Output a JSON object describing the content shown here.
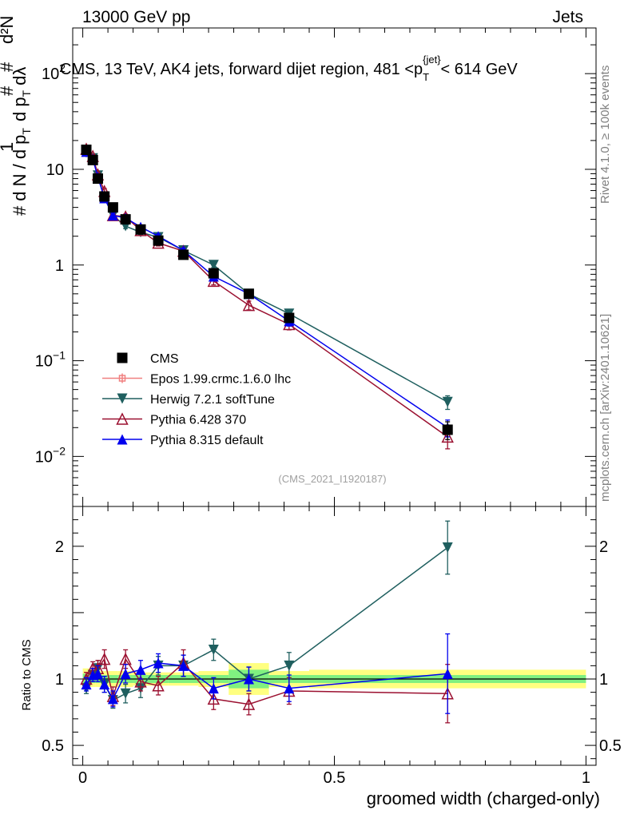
{
  "header": {
    "left": "13000 GeV pp",
    "right": "Jets"
  },
  "plot_title": {
    "main": "CMS, 13 TeV, AK4 jets, forward dijet region, 481 <p",
    "sub": "T",
    "sup": "{jet}",
    "tail": "< 614 GeV"
  },
  "side_labels": {
    "rivet": "Rivet 4.1.0, ≥ 100k events",
    "mcplots": "mcplots.cern.ch [arXiv:2401.10621]"
  },
  "watermark": "(CMS_2021_I1920187)",
  "y_axis_label": {
    "hash1": "#",
    "one": "1",
    "dN": "d N / d p",
    "T1": "T",
    "hash2": "#",
    "d2N": "d²N",
    "dpT": "d p",
    "T2": "T",
    "dlam": "dλ",
    "hash3": "#"
  },
  "ratio_ylabel": "Ratio to CMS",
  "x_axis_label": "groomed width (charged-only)",
  "colors": {
    "cms": "#000000",
    "epos": "#f08080",
    "herwig": "#1f5f5f",
    "pythia6": "#9b1030",
    "pythia8": "#0000ee",
    "band_inner": "#80f080",
    "band_outer": "#ffff80"
  },
  "chart_data": {
    "type": "scatter",
    "x_range": [
      -0.02,
      1.02
    ],
    "main_ylim_log": [
      0.003,
      300
    ],
    "ratio_ylim": [
      0.35,
      2.3
    ],
    "y_ticks_main": [
      {
        "value": 100,
        "base": "10",
        "exp": "2"
      },
      {
        "value": 10,
        "base": "10",
        "exp": ""
      },
      {
        "value": 1,
        "base": "1",
        "exp": ""
      },
      {
        "value": 0.1,
        "base": "10",
        "exp": "−1"
      },
      {
        "value": 0.01,
        "base": "10",
        "exp": "−2"
      }
    ],
    "y_ticks_ratio": [
      {
        "value": 0.5,
        "label": "0.5"
      },
      {
        "value": 1,
        "label": "1"
      },
      {
        "value": 2,
        "label": "2"
      }
    ],
    "x_ticks": [
      {
        "value": 0,
        "label": "0"
      },
      {
        "value": 0.5,
        "label": "0.5"
      },
      {
        "value": 1,
        "label": "1"
      }
    ],
    "bins": [
      {
        "lo": 0.0,
        "hi": 0.015
      },
      {
        "lo": 0.015,
        "hi": 0.025
      },
      {
        "lo": 0.025,
        "hi": 0.035
      },
      {
        "lo": 0.035,
        "hi": 0.05
      },
      {
        "lo": 0.05,
        "hi": 0.07
      },
      {
        "lo": 0.07,
        "hi": 0.1
      },
      {
        "lo": 0.1,
        "hi": 0.13
      },
      {
        "lo": 0.13,
        "hi": 0.17
      },
      {
        "lo": 0.17,
        "hi": 0.23
      },
      {
        "lo": 0.23,
        "hi": 0.29
      },
      {
        "lo": 0.29,
        "hi": 0.37
      },
      {
        "lo": 0.37,
        "hi": 0.45
      },
      {
        "lo": 0.45,
        "hi": 1.0
      }
    ],
    "band_inner_halfwidth": [
      0.04,
      0.03,
      0.03,
      0.03,
      0.03,
      0.03,
      0.03,
      0.03,
      0.03,
      0.03,
      0.07,
      0.03,
      0.03
    ],
    "band_outer_halfwidth": [
      0.08,
      0.06,
      0.06,
      0.06,
      0.06,
      0.06,
      0.05,
      0.05,
      0.05,
      0.06,
      0.12,
      0.06,
      0.07
    ],
    "series": [
      {
        "name": "CMS",
        "key": "cms",
        "marker": "square",
        "x": [
          0.007,
          0.02,
          0.03,
          0.043,
          0.06,
          0.085,
          0.115,
          0.15,
          0.2,
          0.26,
          0.33,
          0.41,
          0.725
        ],
        "y": [
          16,
          12.5,
          8,
          5.2,
          4.0,
          3.0,
          2.35,
          1.8,
          1.28,
          0.82,
          0.5,
          0.28,
          0.019
        ],
        "yerr": [
          0.3,
          0.3,
          0.2,
          0.15,
          0.1,
          0.08,
          0.06,
          0.05,
          0.04,
          0.03,
          0.02,
          0.015,
          0.004
        ]
      },
      {
        "name": "Epos 1.99.crmc.1.6.0 lhc",
        "key": "epos",
        "marker": "none",
        "x": [],
        "y": [],
        "yerr": [],
        "ratio": [],
        "ratio_err": []
      },
      {
        "name": "Herwig 7.2.1 softTune",
        "key": "herwig",
        "marker": "triangle-down",
        "x": [
          0.007,
          0.02,
          0.03,
          0.043,
          0.06,
          0.085,
          0.115,
          0.15,
          0.2,
          0.26,
          0.33,
          0.41,
          0.725
        ],
        "y": [
          15,
          13,
          8.6,
          5.0,
          3.3,
          2.55,
          2.2,
          1.95,
          1.42,
          1.0,
          0.5,
          0.31,
          0.037
        ],
        "yerr": [
          0.5,
          0.5,
          0.4,
          0.3,
          0.2,
          0.15,
          0.12,
          0.1,
          0.08,
          0.06,
          0.04,
          0.03,
          0.006
        ],
        "ratio": [
          0.93,
          1.03,
          1.08,
          0.96,
          0.84,
          0.89,
          0.93,
          1.1,
          1.1,
          1.22,
          1.0,
          1.1,
          1.99
        ],
        "ratio_err": [
          0.04,
          0.05,
          0.06,
          0.06,
          0.06,
          0.07,
          0.07,
          0.07,
          0.08,
          0.08,
          0.09,
          0.1,
          0.2
        ]
      },
      {
        "name": "Pythia 6.428 370",
        "key": "pythia6",
        "marker": "triangle-up-open",
        "x": [
          0.007,
          0.02,
          0.03,
          0.043,
          0.06,
          0.085,
          0.115,
          0.15,
          0.2,
          0.26,
          0.33,
          0.41,
          0.725
        ],
        "y": [
          16.3,
          13.7,
          8.8,
          5.9,
          3.3,
          3.2,
          2.3,
          1.7,
          1.4,
          0.68,
          0.38,
          0.24,
          0.016
        ],
        "yerr": [
          0.6,
          0.6,
          0.5,
          0.4,
          0.2,
          0.2,
          0.15,
          0.12,
          0.1,
          0.06,
          0.04,
          0.03,
          0.004
        ],
        "ratio": [
          1.0,
          1.08,
          1.08,
          1.15,
          0.87,
          1.15,
          0.98,
          0.95,
          1.12,
          0.85,
          0.81,
          0.91,
          0.89
        ],
        "ratio_err": [
          0.05,
          0.05,
          0.06,
          0.07,
          0.07,
          0.07,
          0.07,
          0.07,
          0.1,
          0.08,
          0.08,
          0.1,
          0.22
        ]
      },
      {
        "name": "Pythia 8.315 default",
        "key": "pythia8",
        "marker": "triangle-up",
        "x": [
          0.007,
          0.02,
          0.03,
          0.043,
          0.06,
          0.085,
          0.115,
          0.15,
          0.2,
          0.26,
          0.33,
          0.41,
          0.725
        ],
        "y": [
          15.3,
          12.8,
          8.3,
          5.0,
          3.3,
          3.1,
          2.5,
          2.0,
          1.42,
          0.76,
          0.5,
          0.26,
          0.02
        ],
        "yerr": [
          0.5,
          0.5,
          0.4,
          0.3,
          0.2,
          0.15,
          0.12,
          0.1,
          0.08,
          0.05,
          0.04,
          0.03,
          0.004
        ],
        "ratio": [
          0.96,
          1.03,
          1.04,
          0.96,
          0.85,
          1.04,
          1.07,
          1.12,
          1.1,
          0.93,
          1.0,
          0.93,
          1.04
        ],
        "ratio_err": [
          0.05,
          0.05,
          0.06,
          0.06,
          0.06,
          0.07,
          0.07,
          0.07,
          0.08,
          0.08,
          0.09,
          0.1,
          0.3
        ]
      }
    ]
  }
}
